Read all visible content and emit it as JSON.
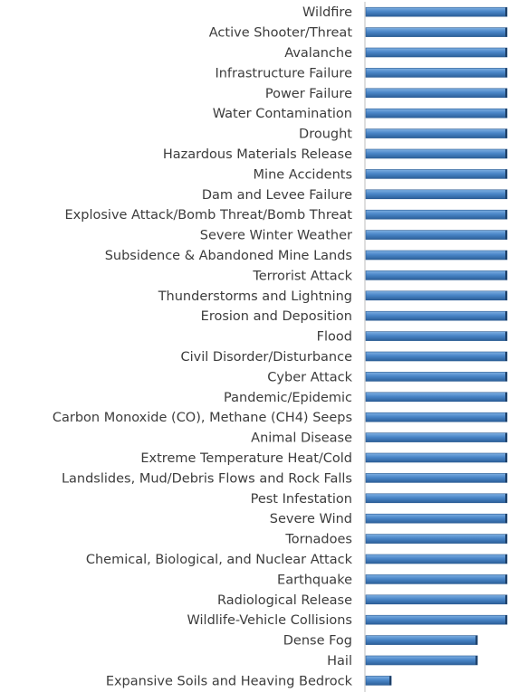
{
  "chart_data": {
    "type": "bar",
    "orientation": "horizontal",
    "title": "",
    "xlabel": "",
    "ylabel": "",
    "grid": false,
    "legend": "none",
    "bar_color": "#4a86c8",
    "categories": [
      "Wildfire",
      "Active Shooter/Threat",
      "Avalanche",
      "Infrastructure Failure",
      "Power Failure",
      "Water Contamination",
      "Drought",
      "Hazardous Materials Release",
      "Mine Accidents",
      "Dam and Levee Failure",
      "Explosive Attack/Bomb Threat/Bomb Threat",
      "Severe Winter Weather",
      "Subsidence & Abandoned Mine Lands",
      "Terrorist Attack",
      "Thunderstorms and Lightning",
      "Erosion and Deposition",
      "Flood",
      "Civil Disorder/Disturbance",
      "Cyber Attack",
      "Pandemic/Epidemic",
      "Carbon Monoxide (CO), Methane (CH4) Seeps",
      "Animal Disease",
      "Extreme Temperature Heat/Cold",
      "Landslides, Mud/Debris Flows and Rock Falls",
      "Pest Infestation",
      "Severe Wind",
      "Tornadoes",
      "Chemical, Biological, and Nuclear Attack",
      "Earthquake",
      "Radiological Release",
      "Wildlife-Vehicle Collisions",
      "Dense Fog",
      "Hail",
      "Expansive Soils and Heaving Bedrock"
    ],
    "values": [
      100,
      100,
      100,
      100,
      100,
      100,
      100,
      100,
      100,
      100,
      100,
      100,
      100,
      100,
      100,
      100,
      100,
      100,
      100,
      100,
      100,
      100,
      100,
      100,
      100,
      100,
      100,
      100,
      100,
      100,
      100,
      79,
      79,
      18
    ],
    "xlim": [
      0,
      100
    ]
  }
}
